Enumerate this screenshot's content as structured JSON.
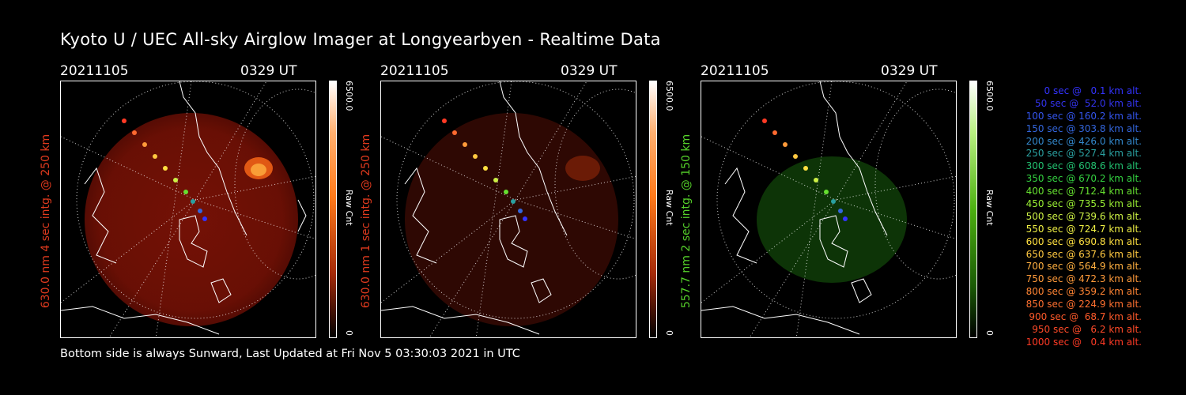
{
  "title": "Kyoto U / UEC All-sky Airglow Imager at Longyearbyen - Realtime Data",
  "footer": "Bottom side is always Sunward, Last Updated at Fri Nov  5 03:30:03 2021 in UTC",
  "panels": [
    {
      "date": "20211105",
      "time": "0329 UT",
      "side_label": "630.0 nm 4 sec intg. @ 250 km",
      "side_color": "#e03a1e",
      "cbar_max": "6500.0",
      "cbar_min": "0",
      "cbar_unit": "Raw Cnt",
      "glow": "#8a1505",
      "cbar_top": "#ff7a1a",
      "brightness": 0.85
    },
    {
      "date": "20211105",
      "time": "0329 UT",
      "side_label": "630.0 nm 1 sec intg. @ 250 km",
      "side_color": "#e03a1e",
      "cbar_max": "6500.0",
      "cbar_min": "0",
      "cbar_unit": "Raw Cnt",
      "glow": "#3a0903",
      "cbar_top": "#ff7a1a",
      "brightness": 0.45
    },
    {
      "date": "20211105",
      "time": "0329 UT",
      "side_label": "557.7 nm 2 sec intg. @ 150 km",
      "side_color": "#55d02a",
      "cbar_max": "6500.0",
      "cbar_min": "0",
      "cbar_unit": "Raw Cnt",
      "glow": "#0d3a07",
      "cbar_top": "#3aa010",
      "brightness": 0.5
    }
  ],
  "legend": [
    {
      "text": "0 sec @   0.1 km alt.",
      "color": "#3333ff"
    },
    {
      "text": "50 sec @  52.0 km alt.",
      "color": "#3333ee"
    },
    {
      "text": "100 sec @ 160.2 km alt.",
      "color": "#3355ee"
    },
    {
      "text": "150 sec @ 303.8 km alt.",
      "color": "#3366dd"
    },
    {
      "text": "200 sec @ 426.0 km alt.",
      "color": "#3388cc"
    },
    {
      "text": "250 sec @ 527.4 km alt.",
      "color": "#2aa0a0"
    },
    {
      "text": "300 sec @ 608.6 km alt.",
      "color": "#22c070"
    },
    {
      "text": "350 sec @ 670.2 km alt.",
      "color": "#33d040"
    },
    {
      "text": "400 sec @ 712.4 km alt.",
      "color": "#66e030"
    },
    {
      "text": "450 sec @ 735.5 km alt.",
      "color": "#99ee33"
    },
    {
      "text": "500 sec @ 739.6 km alt.",
      "color": "#ccf044"
    },
    {
      "text": "550 sec @ 724.7 km alt.",
      "color": "#eeee44"
    },
    {
      "text": "600 sec @ 690.8 km alt.",
      "color": "#ffe040"
    },
    {
      "text": "650 sec @ 637.6 km alt.",
      "color": "#ffc840"
    },
    {
      "text": "700 sec @ 564.9 km alt.",
      "color": "#ffb040"
    },
    {
      "text": "750 sec @ 472.3 km alt.",
      "color": "#ff9a3a"
    },
    {
      "text": "800 sec @ 359.2 km alt.",
      "color": "#ff8433"
    },
    {
      "text": "850 sec @ 224.9 km alt.",
      "color": "#ff7030"
    },
    {
      "text": "900 sec @  68.7 km alt.",
      "color": "#ff5a2a"
    },
    {
      "text": "950 sec @   6.2 km alt.",
      "color": "#ff4a28"
    },
    {
      "text": "1000 sec @   0.4 km alt.",
      "color": "#ff3a25"
    }
  ]
}
